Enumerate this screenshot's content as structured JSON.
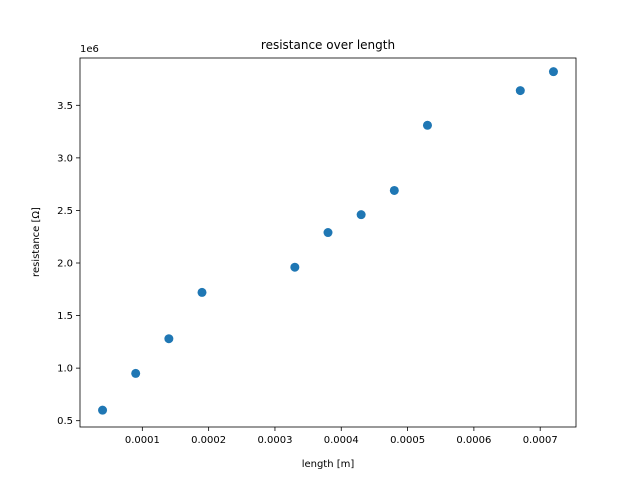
{
  "chart_data": {
    "type": "scatter",
    "title": "resistance over length",
    "xlabel": "length [m]",
    "ylabel": "resistance [Ω]",
    "y_offset_label": "1e6",
    "xlim": [
      6e-06,
      0.000754
    ],
    "ylim": [
      0.44,
      3.95
    ],
    "x_ticks": [
      0.0001,
      0.0002,
      0.0003,
      0.0004,
      0.0005,
      0.0006,
      0.0007
    ],
    "x_tick_labels": [
      "0.0001",
      "0.0002",
      "0.0003",
      "0.0004",
      "0.0005",
      "0.0006",
      "0.0007"
    ],
    "y_ticks": [
      0.5,
      1.0,
      1.5,
      2.0,
      2.5,
      3.0,
      3.5
    ],
    "y_tick_labels": [
      "0.5",
      "1.0",
      "1.5",
      "2.0",
      "2.5",
      "3.0",
      "3.5"
    ],
    "grid": false,
    "marker_color": "#1f77b4",
    "points": [
      {
        "x": 4e-05,
        "y": 0.6
      },
      {
        "x": 9e-05,
        "y": 0.95
      },
      {
        "x": 0.00014,
        "y": 1.28
      },
      {
        "x": 0.00019,
        "y": 1.72
      },
      {
        "x": 0.00033,
        "y": 1.96
      },
      {
        "x": 0.00038,
        "y": 2.29
      },
      {
        "x": 0.00043,
        "y": 2.46
      },
      {
        "x": 0.00048,
        "y": 2.69
      },
      {
        "x": 0.00053,
        "y": 3.31
      },
      {
        "x": 0.00067,
        "y": 3.64
      },
      {
        "x": 0.00072,
        "y": 3.82
      }
    ]
  }
}
